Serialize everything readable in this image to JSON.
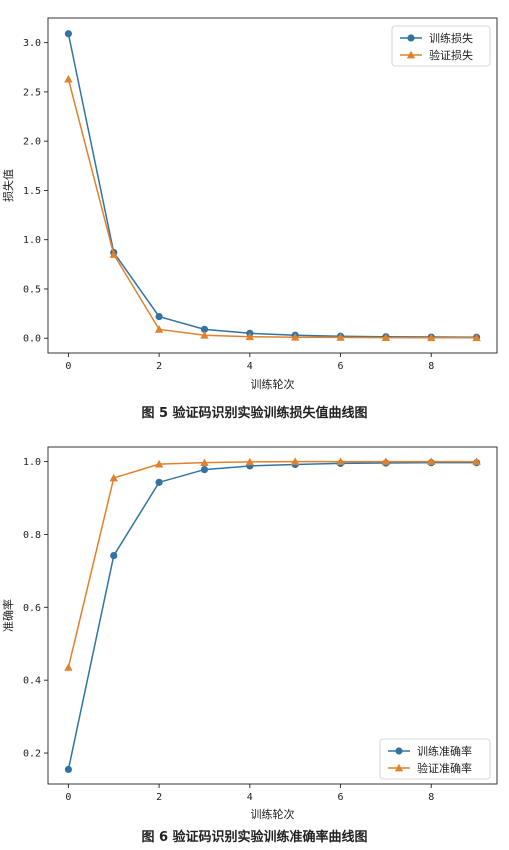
{
  "colors": {
    "train": "#3274a1",
    "valid": "#e1812c"
  },
  "chart_data": [
    {
      "type": "line",
      "title": "",
      "caption": "图 5   验证码识别实验训练损失值曲线图",
      "xlabel": "训练轮次",
      "ylabel": "损失值",
      "x": [
        0,
        1,
        2,
        3,
        4,
        5,
        6,
        7,
        8,
        9
      ],
      "xlim": [
        -0.45,
        9.45
      ],
      "ylim": [
        -0.15,
        3.25
      ],
      "xticks": [
        0,
        2,
        4,
        6,
        8
      ],
      "xtick_labels": [
        "0",
        "2",
        "4",
        "6",
        "8"
      ],
      "yticks": [
        0,
        0.5,
        1.0,
        1.5,
        2.0,
        2.5,
        3.0
      ],
      "ytick_labels": [
        "0.0",
        "0.5",
        "1.0",
        "1.5",
        "2.0",
        "2.5",
        "3.0"
      ],
      "legend_position": "top-right",
      "grid": false,
      "series": [
        {
          "name": "训练损失",
          "marker": "circle",
          "color": "#3274a1",
          "values": [
            3.09,
            0.87,
            0.22,
            0.09,
            0.05,
            0.03,
            0.02,
            0.015,
            0.012,
            0.01
          ]
        },
        {
          "name": "验证损失",
          "marker": "triangle",
          "color": "#e1812c",
          "values": [
            2.63,
            0.85,
            0.09,
            0.03,
            0.015,
            0.01,
            0.008,
            0.006,
            0.005,
            0.005
          ]
        }
      ]
    },
    {
      "type": "line",
      "title": "",
      "caption": "图 6   验证码识别实验训练准确率曲线图",
      "xlabel": "训练轮次",
      "ylabel": "准确率",
      "x": [
        0,
        1,
        2,
        3,
        4,
        5,
        6,
        7,
        8,
        9
      ],
      "xlim": [
        -0.45,
        9.45
      ],
      "ylim": [
        0.115,
        1.04
      ],
      "xticks": [
        0,
        2,
        4,
        6,
        8
      ],
      "xtick_labels": [
        "0",
        "2",
        "4",
        "6",
        "8"
      ],
      "yticks": [
        0.2,
        0.4,
        0.6,
        0.8,
        1.0
      ],
      "ytick_labels": [
        "0.2",
        "0.4",
        "0.6",
        "0.8",
        "1.0"
      ],
      "legend_position": "bottom-right",
      "grid": false,
      "series": [
        {
          "name": "训练准确率",
          "marker": "circle",
          "color": "#3274a1",
          "values": [
            0.155,
            0.742,
            0.943,
            0.978,
            0.988,
            0.992,
            0.995,
            0.996,
            0.997,
            0.997
          ]
        },
        {
          "name": "验证准确率",
          "marker": "triangle",
          "color": "#e1812c",
          "values": [
            0.435,
            0.955,
            0.993,
            0.997,
            0.999,
            1.0,
            1.0,
            1.0,
            1.0,
            1.0
          ]
        }
      ]
    }
  ]
}
